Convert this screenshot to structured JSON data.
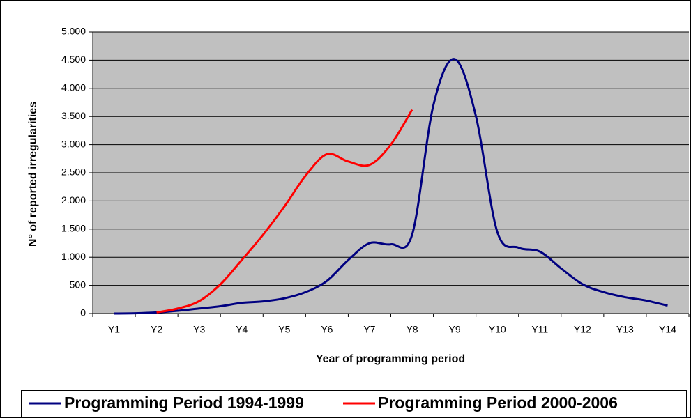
{
  "chart_data": {
    "type": "line",
    "y_label": "N° of reported irregularities",
    "x_label": "Year of programming period",
    "categories": [
      "Y1",
      null,
      "Y2",
      null,
      "Y3",
      null,
      "Y4",
      null,
      "Y5",
      null,
      "Y6",
      null,
      "Y7",
      null,
      "Y8",
      null,
      "Y9",
      null,
      "Y10",
      null,
      "Y11",
      null,
      "Y12",
      null,
      "Y13",
      null,
      "Y14"
    ],
    "series": [
      {
        "name": "Programming Period 1994-1999",
        "color": "#000080",
        "values": [
          0,
          5,
          20,
          50,
          90,
          130,
          190,
          215,
          270,
          380,
          580,
          950,
          1250,
          1230,
          1400,
          3700,
          4520,
          3500,
          1450,
          1170,
          1100,
          800,
          520,
          380,
          290,
          230,
          140
        ]
      },
      {
        "name": "Programming Period 2000-2006",
        "color": "#ff0000",
        "values": [
          null,
          null,
          20,
          90,
          220,
          520,
          950,
          1400,
          1900,
          2450,
          2830,
          2700,
          2640,
          3000,
          3620,
          null,
          null,
          null,
          null,
          null,
          null,
          null,
          null,
          null,
          null,
          null,
          null
        ]
      }
    ],
    "ylim": [
      0,
      5000
    ],
    "yticks": [
      0,
      {
        "value": 500,
        "label": "500"
      },
      {
        "value": 1000,
        "label": "1.000"
      },
      {
        "value": 1500,
        "label": "1.500"
      },
      {
        "value": 2000,
        "label": "2.000"
      },
      {
        "value": 2500,
        "label": "2.500"
      },
      {
        "value": 3000,
        "label": "3.000"
      },
      {
        "value": 3500,
        "label": "3.500"
      },
      {
        "value": 4000,
        "label": "4.000"
      },
      {
        "value": 4500,
        "label": "4.500"
      },
      {
        "value": 5000,
        "label": "5.000"
      }
    ],
    "grid": true,
    "background": "#c0c0c0",
    "legend": "bottom"
  }
}
